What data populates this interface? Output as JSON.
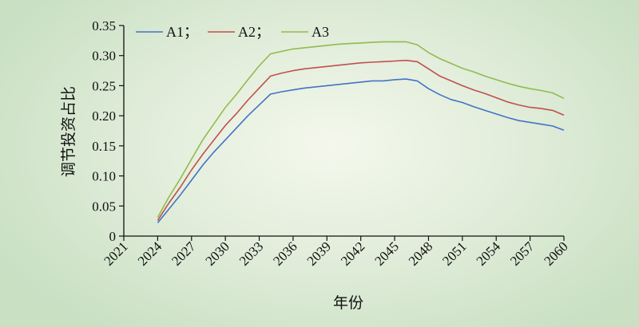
{
  "chart_data": {
    "type": "line",
    "xlabel": "年份",
    "ylabel": "调节投资占比",
    "xlim": [
      2021,
      2060
    ],
    "ylim": [
      0,
      0.35
    ],
    "x_ticks": [
      "2021",
      "2024",
      "2027",
      "2030",
      "2033",
      "2036",
      "2039",
      "2042",
      "2045",
      "2048",
      "2051",
      "2054",
      "2057",
      "2060"
    ],
    "y_ticks": [
      "0",
      "0.05",
      "0.10",
      "0.15",
      "0.20",
      "0.25",
      "0.30",
      "0.35"
    ],
    "grid": false,
    "legend_position": "top-left",
    "series": [
      {
        "name": "A1；",
        "color": "#4472c4",
        "x": [
          2024,
          2025,
          2026,
          2027,
          2028,
          2029,
          2030,
          2031,
          2032,
          2033,
          2034,
          2035,
          2036,
          2037,
          2038,
          2039,
          2040,
          2041,
          2042,
          2043,
          2044,
          2045,
          2046,
          2047,
          2048,
          2049,
          2050,
          2051,
          2052,
          2053,
          2054,
          2055,
          2056,
          2057,
          2058,
          2059,
          2060
        ],
        "values": [
          0.022,
          0.045,
          0.068,
          0.093,
          0.118,
          0.14,
          0.16,
          0.18,
          0.2,
          0.218,
          0.236,
          0.24,
          0.243,
          0.246,
          0.248,
          0.25,
          0.252,
          0.254,
          0.256,
          0.258,
          0.258,
          0.26,
          0.261,
          0.258,
          0.245,
          0.235,
          0.227,
          0.222,
          0.215,
          0.209,
          0.203,
          0.197,
          0.192,
          0.189,
          0.186,
          0.183,
          0.176
        ]
      },
      {
        "name": "A2；",
        "color": "#c0504d",
        "x": [
          2024,
          2025,
          2026,
          2027,
          2028,
          2029,
          2030,
          2031,
          2032,
          2033,
          2034,
          2035,
          2036,
          2037,
          2038,
          2039,
          2040,
          2041,
          2042,
          2043,
          2044,
          2045,
          2046,
          2047,
          2048,
          2049,
          2050,
          2051,
          2052,
          2053,
          2054,
          2055,
          2056,
          2057,
          2058,
          2059,
          2060
        ],
        "values": [
          0.026,
          0.055,
          0.081,
          0.11,
          0.136,
          0.16,
          0.184,
          0.204,
          0.226,
          0.246,
          0.266,
          0.271,
          0.275,
          0.278,
          0.28,
          0.282,
          0.284,
          0.286,
          0.288,
          0.289,
          0.29,
          0.291,
          0.292,
          0.29,
          0.278,
          0.266,
          0.258,
          0.25,
          0.243,
          0.237,
          0.23,
          0.223,
          0.218,
          0.214,
          0.212,
          0.209,
          0.201
        ]
      },
      {
        "name": "A3",
        "color": "#8fbc4f",
        "x": [
          2024,
          2025,
          2026,
          2027,
          2028,
          2029,
          2030,
          2031,
          2032,
          2033,
          2034,
          2035,
          2036,
          2037,
          2038,
          2039,
          2040,
          2041,
          2042,
          2043,
          2044,
          2045,
          2046,
          2047,
          2048,
          2049,
          2050,
          2051,
          2052,
          2053,
          2054,
          2055,
          2056,
          2057,
          2058,
          2059,
          2060
        ],
        "values": [
          0.031,
          0.065,
          0.095,
          0.128,
          0.16,
          0.187,
          0.214,
          0.236,
          0.26,
          0.283,
          0.303,
          0.307,
          0.311,
          0.313,
          0.315,
          0.317,
          0.319,
          0.32,
          0.321,
          0.322,
          0.323,
          0.323,
          0.323,
          0.318,
          0.305,
          0.295,
          0.287,
          0.279,
          0.273,
          0.266,
          0.26,
          0.254,
          0.249,
          0.245,
          0.242,
          0.238,
          0.229
        ]
      }
    ]
  }
}
